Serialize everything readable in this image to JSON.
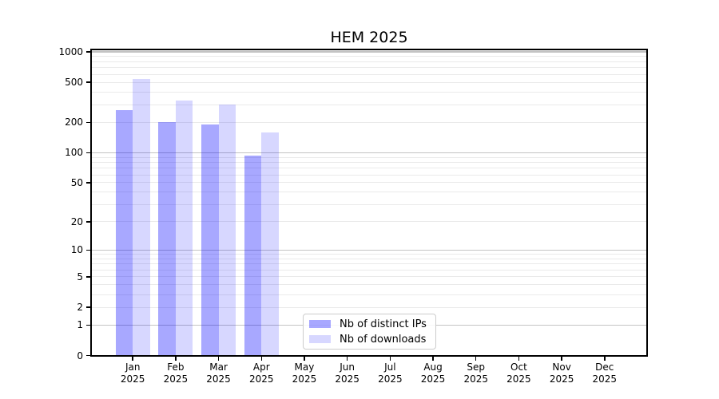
{
  "chart_data": {
    "type": "bar",
    "title": "HEM 2025",
    "categories": [
      "Jan",
      "Feb",
      "Mar",
      "Apr",
      "May",
      "Jun",
      "Jul",
      "Aug",
      "Sep",
      "Oct",
      "Nov",
      "Dec"
    ],
    "x_tick_year": "2025",
    "series": [
      {
        "name": "Nb of distinct IPs",
        "color": "rgba(0,0,255,0.34)",
        "key": "distinct-ips",
        "values": [
          264,
          203,
          190,
          94,
          null,
          null,
          null,
          null,
          null,
          null,
          null,
          null
        ]
      },
      {
        "name": "Nb of downloads",
        "color": "rgba(0,0,255,0.155)",
        "key": "downloads",
        "values": [
          540,
          330,
          303,
          160,
          null,
          null,
          null,
          null,
          null,
          null,
          null,
          null
        ]
      }
    ],
    "y_axis": {
      "scale": "log10(1+y)",
      "tick_labels": [
        "1000",
        "500",
        "200",
        "100",
        "50",
        "20",
        "10",
        "5",
        "2",
        "1",
        "0"
      ],
      "tick_values": [
        1000,
        500,
        200,
        100,
        50,
        20,
        10,
        5,
        2,
        1,
        0
      ],
      "major_gridlines": [
        1,
        10,
        100,
        1000
      ],
      "minor_gridlines": [
        2,
        3,
        4,
        5,
        6,
        7,
        8,
        9,
        20,
        30,
        40,
        50,
        60,
        70,
        80,
        90,
        200,
        300,
        400,
        500,
        600,
        700,
        800,
        900
      ],
      "ylim": [
        0,
        1075
      ]
    },
    "legend": {
      "position": "lower-center"
    },
    "colors": {
      "bar_distinct_ips_flat": "#aaaaf8",
      "bar_downloads_flat": "#d8d8f8",
      "grid_major": "#c3c3c3",
      "grid_minor": "#eaeaea",
      "spine": "#000000",
      "background": "#ffffff",
      "text": "#000000"
    }
  }
}
